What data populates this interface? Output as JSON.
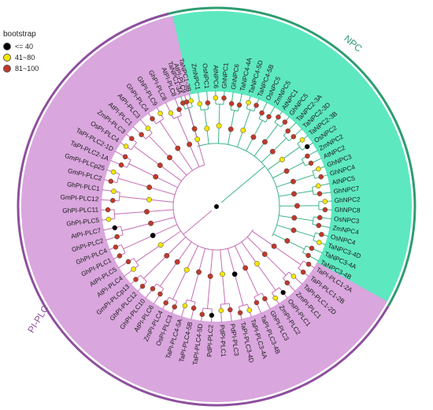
{
  "legend": {
    "title": "bootstrap",
    "items": [
      {
        "label": "<= 40",
        "color": "#000000"
      },
      {
        "label": "41~80",
        "color": "#f2e600"
      },
      {
        "label": "81~100",
        "color": "#c0392b"
      }
    ]
  },
  "colors": {
    "npc_fill": "#5de8c0",
    "npc_arc": "#2e9c70",
    "npc_label": "#2e9c70",
    "pi_fill": "#d9a6dd",
    "pi_arc": "#8e4f9e",
    "pi_label": "#8e4f9e",
    "branch": "#c46eb3",
    "branch_npc": "#3fb38a"
  },
  "clades": {
    "npc": "NPC",
    "piplc": "PI-PLC"
  },
  "npc_leaves": [
    "TaNPC1-3A",
    "TaNPC1-3B",
    "ZmNPC1",
    "OsNPC1",
    "AtNPC6",
    "GhNPC1",
    "GhNPC6",
    "TaNPC4-4A",
    "TaNPC4-5D",
    "TaNPC4-5B",
    "OsNPC5",
    "ZmNPC5",
    "AtNPC1",
    "GhNPC5",
    "TaNPC2-3A",
    "TaNPC2-3D",
    "TaNPC2-3B",
    "OsNPC2",
    "ZmNPC2",
    "AtNPC2",
    "GhNPC3",
    "GhNPC4",
    "AtNPC5",
    "GhNPC7",
    "GhNPC2",
    "GhNPC8",
    "OsNPC3",
    "ZmNPC4",
    "OsNPC4",
    "TaNPC3-4D",
    "TaNPC3-4A",
    "TaNPC3-4B"
  ],
  "pi_leaves": [
    "TaPI-PLC1-2A",
    "TaPI-PLC1-2B",
    "TaPI-PLC1-2D",
    "ZmPI-PLC1",
    "OsPI-PLC1",
    "ZmPI-PLC2",
    "GhPI-PLC3",
    "TaPI-PLC3-4B",
    "TaPI-PLC3-4A",
    "TaPI-PLC3-4D",
    "PdPI-PLC3",
    "PdPI-PLC1",
    "PdPI-PLC2",
    "TaPI-PLC4-5D",
    "TaPI-PLC4-5B",
    "TaPI-PLC4-5A",
    "OsPI-PLC3",
    "ZmPI-PLC4",
    "AtPI-PLC6",
    "GhPI-PLC10",
    "GhPI-PLC12",
    "GmPI-PLCp13",
    "AtPI-PLC4",
    "AtPI-PLC5",
    "GhPI-PLC1",
    "GhPI-PLC4",
    "GhPI-PLC2",
    "AtPI-PLC7",
    "GhPI-PLC5",
    "GhPI-PLC11",
    "GmPI-PLC12",
    "GhPI-PLC1",
    "GmPI-PLC2",
    "GmPI-PLCp25",
    "TaPI-PLC2-1A",
    "TaPI-PLC2-1D",
    "OsPI-PLC4",
    "ZmPI-PLC3",
    "AtPI-PLC1",
    "AtPI-PLC3",
    "GhPI-PLC4",
    "GhPI-PLC9",
    "GhPI-PLC8",
    "AtPI-PLC8",
    "AtPI-PLC9"
  ],
  "npc_bootstrap": [
    "red",
    "yellow",
    "yellow",
    "red",
    "yellow",
    "red",
    "red",
    "red",
    "yellow",
    "red",
    "red",
    "red",
    "red",
    "red",
    "red",
    "red",
    "yellow",
    "black",
    "red",
    "red",
    "yellow",
    "red",
    "yellow",
    "red",
    "yellow",
    "red",
    "red",
    "red",
    "red",
    "yellow",
    "red",
    "red"
  ],
  "pi_bootstrap": [
    "red",
    "red",
    "yellow",
    "red",
    "black",
    "yellow",
    "red",
    "red",
    "yellow",
    "red",
    "red",
    "yellow",
    "black",
    "red",
    "red",
    "yellow",
    "red",
    "red",
    "red",
    "red",
    "red",
    "red",
    "yellow",
    "red",
    "red",
    "red",
    "red",
    "black",
    "yellow",
    "red",
    "red",
    "yellow",
    "red",
    "yellow",
    "red",
    "red",
    "yellow",
    "red",
    "red",
    "yellow",
    "red",
    "yellow",
    "yellow",
    "red",
    "red"
  ]
}
